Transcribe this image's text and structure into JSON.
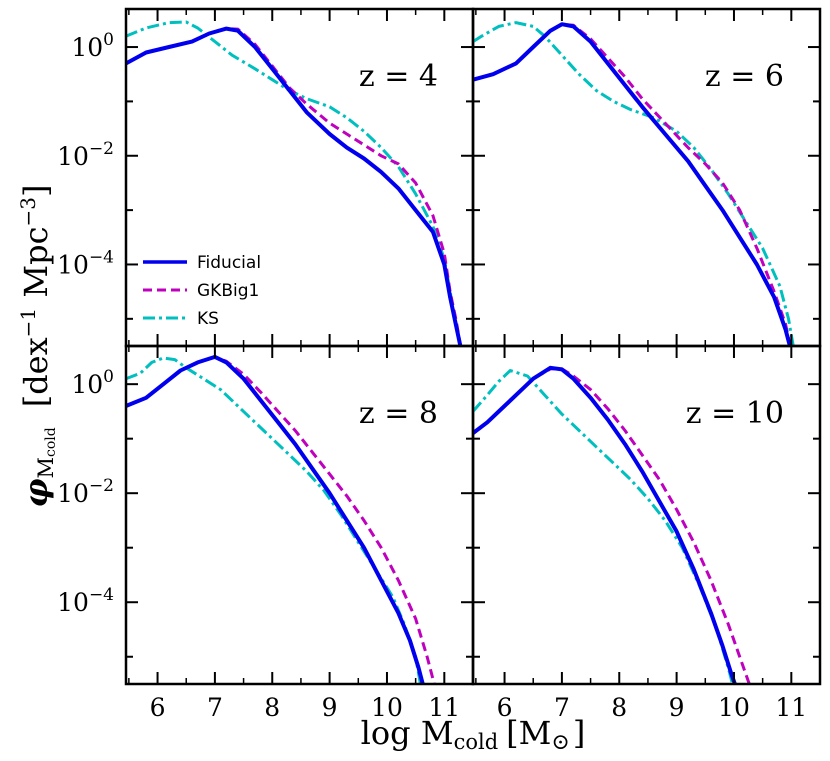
{
  "chart_data": {
    "type": "line",
    "layout": "2x2 grid, shared axes",
    "xlabel_main": "log M",
    "xlabel_sub": "cold",
    "xlabel_unit": "[M",
    "xlabel_unit_sub": "⊙",
    "xlabel_unit_close": "]",
    "ylabel_phi": "φ",
    "ylabel_sub": "M",
    "ylabel_subsub": "cold",
    "ylabel_bracket": "[dex",
    "ylabel_exp1": "−1",
    "ylabel_mid": " Mpc",
    "ylabel_exp2": "−3",
    "ylabel_close": "]",
    "xlim": [
      5.45,
      11.5
    ],
    "ylim_log10": [
      -5.5,
      0.7
    ],
    "yscale": "log",
    "x_ticks": [
      "6",
      "7",
      "8",
      "9",
      "10",
      "11"
    ],
    "y_tick_base": "10",
    "y_ticks_top": [
      {
        "base": "10",
        "exp": "0",
        "label": "10^0"
      },
      {
        "base": "10",
        "exp": "−2",
        "label": "10^-2"
      },
      {
        "base": "10",
        "exp": "−4",
        "label": "10^-4"
      }
    ],
    "y_ticks_bottom": [
      {
        "base": "10",
        "exp": "0",
        "label": "10^0"
      },
      {
        "base": "10",
        "exp": "−2",
        "label": "10^-2"
      },
      {
        "base": "10",
        "exp": "−4",
        "label": "10^-4"
      }
    ],
    "legend": {
      "placement": "lower-left of top-left panel",
      "entries": [
        {
          "name": "Fiducial",
          "color": "#0000ee",
          "style": "solid"
        },
        {
          "name": "GKBig1",
          "color": "#bf00bf",
          "style": "dashed"
        },
        {
          "name": "KS",
          "color": "#00bfbf",
          "style": "dashdot"
        }
      ]
    },
    "panels": [
      {
        "label": "z = 4",
        "series": [
          {
            "name": "Fiducial",
            "x": [
              5.45,
              5.8,
              6.2,
              6.6,
              6.9,
              7.2,
              7.4,
              7.7,
              8.0,
              8.3,
              8.6,
              9.0,
              9.3,
              9.6,
              9.9,
              10.2,
              10.5,
              10.8,
              11.0,
              11.1,
              11.2,
              11.3
            ],
            "y": [
              -0.3,
              -0.1,
              0.0,
              0.1,
              0.25,
              0.34,
              0.3,
              0.0,
              -0.4,
              -0.8,
              -1.2,
              -1.6,
              -1.85,
              -2.05,
              -2.3,
              -2.6,
              -3.0,
              -3.4,
              -4.0,
              -4.6,
              -5.1,
              -5.6
            ]
          },
          {
            "name": "GKBig1",
            "x": [
              5.45,
              5.8,
              6.2,
              6.6,
              6.9,
              7.2,
              7.4,
              7.7,
              8.0,
              8.3,
              8.6,
              9.0,
              9.3,
              9.6,
              9.9,
              10.2,
              10.5,
              10.8,
              11.0,
              11.1,
              11.2,
              11.3
            ],
            "y": [
              -0.3,
              -0.1,
              0.0,
              0.1,
              0.25,
              0.34,
              0.33,
              0.05,
              -0.35,
              -0.75,
              -1.05,
              -1.4,
              -1.6,
              -1.8,
              -2.0,
              -2.15,
              -2.5,
              -3.1,
              -3.8,
              -4.5,
              -5.0,
              -5.6
            ]
          },
          {
            "name": "KS",
            "x": [
              5.45,
              5.8,
              6.2,
              6.5,
              6.7,
              7.0,
              7.3,
              7.7,
              8.0,
              8.3,
              8.6,
              9.0,
              9.3,
              9.6,
              9.9,
              10.2,
              10.5,
              10.8,
              11.0,
              11.1,
              11.2,
              11.3
            ],
            "y": [
              0.2,
              0.35,
              0.45,
              0.46,
              0.35,
              0.1,
              -0.15,
              -0.4,
              -0.6,
              -0.8,
              -0.95,
              -1.1,
              -1.3,
              -1.55,
              -1.85,
              -2.2,
              -2.7,
              -3.3,
              -3.9,
              -4.5,
              -5.1,
              -5.6
            ]
          }
        ]
      },
      {
        "label": "z = 6",
        "series": [
          {
            "name": "Fiducial",
            "x": [
              5.45,
              5.8,
              6.2,
              6.5,
              6.8,
              7.0,
              7.2,
              7.5,
              7.8,
              8.1,
              8.4,
              8.8,
              9.2,
              9.5,
              9.8,
              10.1,
              10.4,
              10.7,
              10.9,
              11.0
            ],
            "y": [
              -0.6,
              -0.5,
              -0.3,
              0.0,
              0.3,
              0.42,
              0.38,
              0.1,
              -0.3,
              -0.7,
              -1.1,
              -1.6,
              -2.1,
              -2.55,
              -3.0,
              -3.5,
              -4.0,
              -4.6,
              -5.2,
              -5.6
            ]
          },
          {
            "name": "GKBig1",
            "x": [
              5.45,
              5.8,
              6.2,
              6.5,
              6.8,
              7.0,
              7.2,
              7.5,
              7.8,
              8.1,
              8.4,
              8.8,
              9.2,
              9.5,
              9.8,
              10.1,
              10.4,
              10.7,
              10.9,
              11.0
            ],
            "y": [
              -0.6,
              -0.5,
              -0.3,
              0.0,
              0.3,
              0.42,
              0.4,
              0.15,
              -0.2,
              -0.55,
              -0.95,
              -1.4,
              -1.85,
              -2.15,
              -2.5,
              -3.0,
              -3.7,
              -4.5,
              -5.1,
              -5.6
            ]
          },
          {
            "name": "KS",
            "x": [
              5.45,
              5.6,
              5.9,
              6.2,
              6.5,
              6.7,
              7.0,
              7.3,
              7.6,
              7.9,
              8.2,
              8.6,
              9.0,
              9.3,
              9.6,
              9.9,
              10.2,
              10.5,
              10.8,
              10.95,
              11.05
            ],
            "y": [
              0.1,
              0.2,
              0.38,
              0.45,
              0.38,
              0.2,
              -0.15,
              -0.5,
              -0.8,
              -1.0,
              -1.15,
              -1.3,
              -1.55,
              -1.85,
              -2.25,
              -2.7,
              -3.2,
              -3.7,
              -4.4,
              -5.0,
              -5.6
            ]
          }
        ]
      },
      {
        "label": "z = 8",
        "series": [
          {
            "name": "Fiducial",
            "x": [
              5.45,
              5.8,
              6.1,
              6.4,
              6.7,
              7.0,
              7.2,
              7.5,
              7.8,
              8.1,
              8.4,
              8.7,
              9.0,
              9.3,
              9.6,
              9.9,
              10.2,
              10.4,
              10.55,
              10.65
            ],
            "y": [
              -0.4,
              -0.25,
              0.0,
              0.25,
              0.4,
              0.5,
              0.4,
              0.1,
              -0.3,
              -0.7,
              -1.1,
              -1.55,
              -2.0,
              -2.5,
              -3.0,
              -3.6,
              -4.2,
              -4.7,
              -5.2,
              -5.6
            ]
          },
          {
            "name": "GKBig1",
            "x": [
              5.45,
              5.8,
              6.1,
              6.4,
              6.7,
              7.0,
              7.2,
              7.5,
              7.8,
              8.1,
              8.4,
              8.7,
              9.0,
              9.3,
              9.6,
              9.9,
              10.2,
              10.5,
              10.7,
              10.85
            ],
            "y": [
              -0.4,
              -0.25,
              0.0,
              0.25,
              0.4,
              0.5,
              0.42,
              0.18,
              -0.15,
              -0.5,
              -0.85,
              -1.25,
              -1.65,
              -2.05,
              -2.5,
              -3.0,
              -3.6,
              -4.3,
              -5.0,
              -5.6
            ]
          },
          {
            "name": "KS",
            "x": [
              5.45,
              5.7,
              5.9,
              6.1,
              6.3,
              6.5,
              6.8,
              7.1,
              7.4,
              7.7,
              8.0,
              8.3,
              8.6,
              8.9,
              9.2,
              9.5,
              9.8,
              10.1,
              10.3,
              10.5,
              10.6
            ],
            "y": [
              0.1,
              0.2,
              0.4,
              0.48,
              0.45,
              0.3,
              0.1,
              -0.1,
              -0.4,
              -0.7,
              -1.0,
              -1.3,
              -1.6,
              -1.95,
              -2.4,
              -2.9,
              -3.4,
              -3.9,
              -4.4,
              -5.0,
              -5.6
            ]
          }
        ]
      },
      {
        "label": "z = 10",
        "series": [
          {
            "name": "Fiducial",
            "x": [
              5.45,
              5.7,
              6.0,
              6.3,
              6.5,
              6.8,
              7.0,
              7.2,
              7.5,
              7.8,
              8.1,
              8.4,
              8.7,
              9.0,
              9.3,
              9.6,
              9.8,
              9.95,
              10.05
            ],
            "y": [
              -0.9,
              -0.7,
              -0.4,
              -0.1,
              0.1,
              0.3,
              0.27,
              0.1,
              -0.25,
              -0.65,
              -1.1,
              -1.6,
              -2.15,
              -2.7,
              -3.4,
              -4.2,
              -4.8,
              -5.3,
              -5.6
            ]
          },
          {
            "name": "GKBig1",
            "x": [
              5.45,
              5.7,
              6.0,
              6.3,
              6.5,
              6.8,
              7.0,
              7.2,
              7.5,
              7.8,
              8.1,
              8.4,
              8.7,
              9.0,
              9.3,
              9.6,
              9.9,
              10.1,
              10.3
            ],
            "y": [
              -0.9,
              -0.7,
              -0.4,
              -0.1,
              0.1,
              0.28,
              0.28,
              0.15,
              -0.1,
              -0.45,
              -0.85,
              -1.3,
              -1.75,
              -2.3,
              -2.9,
              -3.6,
              -4.4,
              -5.0,
              -5.6
            ]
          },
          {
            "name": "KS",
            "x": [
              5.45,
              5.7,
              5.9,
              6.1,
              6.4,
              6.7,
              7.0,
              7.3,
              7.6,
              7.9,
              8.2,
              8.5,
              8.8,
              9.1,
              9.4,
              9.7,
              9.9,
              10.0
            ],
            "y": [
              -0.5,
              -0.2,
              0.05,
              0.25,
              0.15,
              -0.2,
              -0.55,
              -0.85,
              -1.15,
              -1.45,
              -1.75,
              -2.1,
              -2.5,
              -3.0,
              -3.7,
              -4.5,
              -5.2,
              -5.6
            ]
          }
        ]
      }
    ]
  }
}
